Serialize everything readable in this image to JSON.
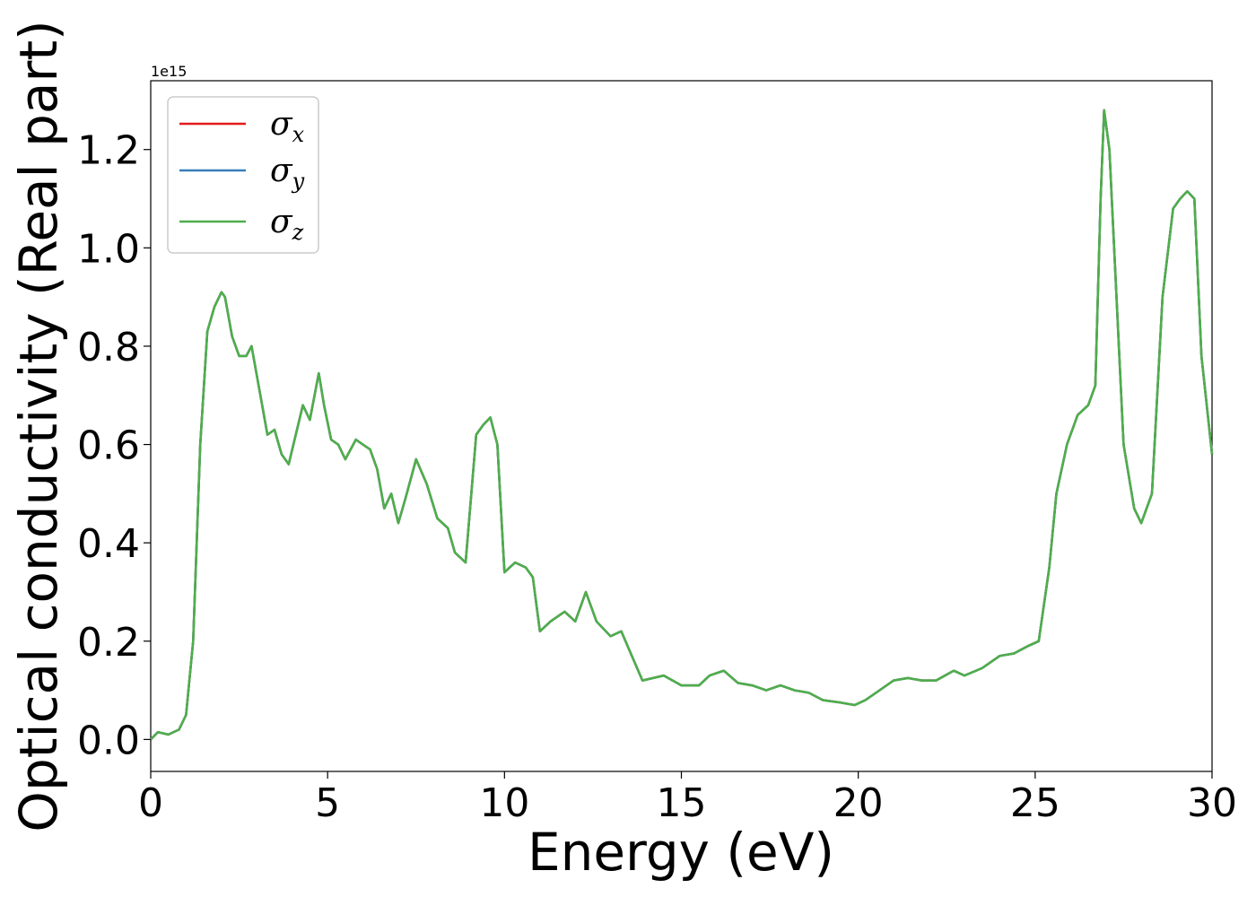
{
  "chart_data": {
    "type": "line",
    "xlabel": "Energy (eV)",
    "ylabel": "Optical conductivity (Real part)",
    "y_offset_label": "1e15",
    "xlim": [
      0,
      30
    ],
    "ylim": [
      -0.065,
      1.34
    ],
    "x_ticks": [
      0,
      5,
      10,
      15,
      20,
      25,
      30
    ],
    "y_ticks": [
      0.0,
      0.2,
      0.4,
      0.6,
      0.8,
      1.0,
      1.2
    ],
    "x_tick_labels": [
      "0",
      "5",
      "10",
      "15",
      "20",
      "25",
      "30"
    ],
    "y_tick_labels": [
      "0.0",
      "0.2",
      "0.4",
      "0.6",
      "0.8",
      "1.0",
      "1.2"
    ],
    "grid": false,
    "legend_position": "top-left",
    "series": [
      {
        "name": "σx",
        "symbol": "σ",
        "subscript": "x",
        "color": "#e41a1c"
      },
      {
        "name": "σy",
        "symbol": "σ",
        "subscript": "y",
        "color": "#377eb8"
      },
      {
        "name": "σz",
        "symbol": "σ",
        "subscript": "z",
        "color": "#4daf4a"
      }
    ],
    "shared_curve": {
      "note_identical": true,
      "x": [
        0,
        0.2,
        0.5,
        0.8,
        1.0,
        1.2,
        1.4,
        1.6,
        1.8,
        2.0,
        2.1,
        2.3,
        2.5,
        2.7,
        2.85,
        3.0,
        3.3,
        3.5,
        3.7,
        3.9,
        4.1,
        4.3,
        4.5,
        4.75,
        4.9,
        5.1,
        5.3,
        5.5,
        5.8,
        6.0,
        6.2,
        6.4,
        6.6,
        6.8,
        7.0,
        7.2,
        7.5,
        7.8,
        8.1,
        8.4,
        8.6,
        8.9,
        9.2,
        9.4,
        9.6,
        9.8,
        10.0,
        10.3,
        10.6,
        10.8,
        11.0,
        11.3,
        11.7,
        12.0,
        12.3,
        12.6,
        13.0,
        13.3,
        13.6,
        13.9,
        14.2,
        14.5,
        15.0,
        15.5,
        15.8,
        16.2,
        16.6,
        17.0,
        17.4,
        17.8,
        18.2,
        18.6,
        19.0,
        19.5,
        19.9,
        20.2,
        20.6,
        21.0,
        21.4,
        21.8,
        22.2,
        22.7,
        23.0,
        23.5,
        24.0,
        24.4,
        24.8,
        25.1,
        25.4,
        25.6,
        25.9,
        26.2,
        26.5,
        26.7,
        26.85,
        26.95,
        27.1,
        27.3,
        27.5,
        27.8,
        28.0,
        28.3,
        28.6,
        28.9,
        29.1,
        29.3,
        29.5,
        29.7,
        30.0
      ],
      "y": [
        0.0,
        0.015,
        0.01,
        0.02,
        0.05,
        0.2,
        0.6,
        0.83,
        0.88,
        0.91,
        0.9,
        0.82,
        0.78,
        0.78,
        0.8,
        0.74,
        0.62,
        0.63,
        0.58,
        0.56,
        0.62,
        0.68,
        0.65,
        0.745,
        0.68,
        0.61,
        0.6,
        0.57,
        0.61,
        0.6,
        0.59,
        0.55,
        0.47,
        0.5,
        0.44,
        0.49,
        0.57,
        0.52,
        0.45,
        0.43,
        0.38,
        0.36,
        0.62,
        0.64,
        0.655,
        0.6,
        0.34,
        0.36,
        0.35,
        0.33,
        0.22,
        0.24,
        0.26,
        0.24,
        0.3,
        0.24,
        0.21,
        0.22,
        0.17,
        0.12,
        0.125,
        0.13,
        0.11,
        0.11,
        0.13,
        0.14,
        0.115,
        0.11,
        0.1,
        0.11,
        0.1,
        0.095,
        0.08,
        0.075,
        0.07,
        0.08,
        0.1,
        0.12,
        0.125,
        0.12,
        0.12,
        0.14,
        0.13,
        0.145,
        0.17,
        0.175,
        0.19,
        0.2,
        0.35,
        0.5,
        0.6,
        0.66,
        0.68,
        0.72,
        1.1,
        1.28,
        1.2,
        0.9,
        0.6,
        0.47,
        0.44,
        0.5,
        0.9,
        1.08,
        1.1,
        1.115,
        1.1,
        0.78,
        0.58
      ]
    }
  }
}
